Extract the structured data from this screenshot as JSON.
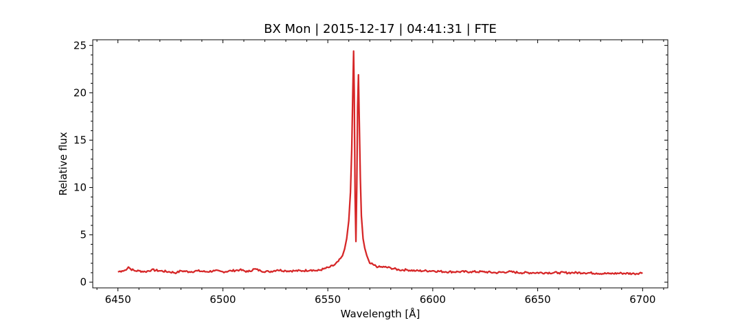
{
  "chart_data": {
    "type": "line",
    "title": "BX Mon | 2015-12-17 | 04:41:31 | FTE",
    "xlabel": "Wavelength [Å]",
    "ylabel": "Relative flux",
    "xlim": [
      6438,
      6712
    ],
    "ylim": [
      -0.6,
      25.6
    ],
    "xticks": [
      6450,
      6500,
      6550,
      6600,
      6650,
      6700
    ],
    "yticks": [
      0,
      5,
      10,
      15,
      20,
      25
    ],
    "grid": false,
    "line_color": "#d62728",
    "series": [
      {
        "x": [
          6450,
          6452,
          6454,
          6455,
          6456,
          6458,
          6460,
          6463,
          6466,
          6470,
          6474,
          6478,
          6480,
          6484,
          6488,
          6492,
          6496,
          6500,
          6504,
          6508,
          6512,
          6515,
          6518,
          6522,
          6526,
          6530,
          6534,
          6538,
          6542,
          6545,
          6548,
          6551,
          6553,
          6555,
          6557,
          6558,
          6559,
          6560,
          6560.8,
          6561.4,
          6561.9,
          6562.3,
          6562.6,
          6563.0,
          6563.4,
          6563.8,
          6564.2,
          6564.6,
          6565.0,
          6565.5,
          6566.0,
          6566.8,
          6567.6,
          6568.6,
          6570,
          6572,
          6574,
          6577,
          6580,
          6584,
          6588,
          6592,
          6596,
          6600,
          6606,
          6612,
          6618,
          6624,
          6630,
          6636,
          6642,
          6648,
          6654,
          6660,
          6666,
          6672,
          6678,
          6684,
          6690,
          6696,
          6700
        ],
        "y": [
          1.1,
          1.2,
          1.3,
          1.6,
          1.4,
          1.2,
          1.2,
          1.1,
          1.3,
          1.2,
          1.1,
          1.0,
          1.2,
          1.1,
          1.2,
          1.1,
          1.2,
          1.1,
          1.2,
          1.3,
          1.1,
          1.4,
          1.2,
          1.1,
          1.3,
          1.2,
          1.2,
          1.2,
          1.3,
          1.2,
          1.4,
          1.6,
          1.8,
          2.2,
          2.8,
          3.5,
          4.6,
          6.5,
          9.5,
          14.0,
          20.0,
          24.4,
          20.0,
          9.0,
          4.3,
          10.0,
          18.5,
          21.9,
          17.0,
          11.0,
          7.0,
          4.6,
          3.6,
          2.8,
          2.0,
          1.8,
          1.6,
          1.6,
          1.5,
          1.3,
          1.3,
          1.2,
          1.2,
          1.2,
          1.1,
          1.1,
          1.1,
          1.1,
          1.0,
          1.1,
          1.0,
          1.0,
          1.0,
          1.0,
          1.0,
          1.0,
          0.95,
          0.9,
          0.95,
          0.9,
          1.0
        ]
      }
    ]
  }
}
